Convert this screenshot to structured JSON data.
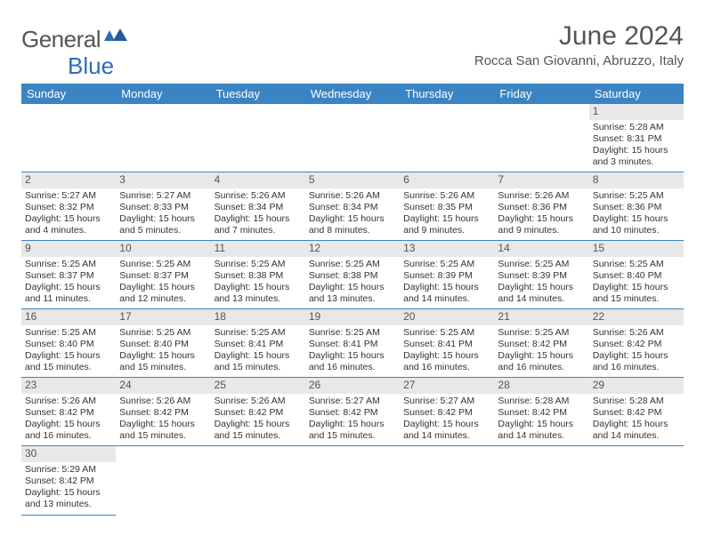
{
  "brand": {
    "general": "General",
    "blue": "Blue"
  },
  "title": "June 2024",
  "location": "Rocca San Giovanni, Abruzzo, Italy",
  "colors": {
    "header_bg": "#3b84c4",
    "header_text": "#ffffff",
    "daynum_bg": "#e8e8e8",
    "cell_border": "#3b84c4",
    "logo_blue": "#2a6db5"
  },
  "weekdays": [
    "Sunday",
    "Monday",
    "Tuesday",
    "Wednesday",
    "Thursday",
    "Friday",
    "Saturday"
  ],
  "labels": {
    "sunrise": "Sunrise: ",
    "sunset": "Sunset: ",
    "daylight": "Daylight: "
  },
  "first_weekday_index": 6,
  "days": [
    {
      "n": 1,
      "sunrise": "5:28 AM",
      "sunset": "8:31 PM",
      "daylight": "15 hours and 3 minutes."
    },
    {
      "n": 2,
      "sunrise": "5:27 AM",
      "sunset": "8:32 PM",
      "daylight": "15 hours and 4 minutes."
    },
    {
      "n": 3,
      "sunrise": "5:27 AM",
      "sunset": "8:33 PM",
      "daylight": "15 hours and 5 minutes."
    },
    {
      "n": 4,
      "sunrise": "5:26 AM",
      "sunset": "8:34 PM",
      "daylight": "15 hours and 7 minutes."
    },
    {
      "n": 5,
      "sunrise": "5:26 AM",
      "sunset": "8:34 PM",
      "daylight": "15 hours and 8 minutes."
    },
    {
      "n": 6,
      "sunrise": "5:26 AM",
      "sunset": "8:35 PM",
      "daylight": "15 hours and 9 minutes."
    },
    {
      "n": 7,
      "sunrise": "5:26 AM",
      "sunset": "8:36 PM",
      "daylight": "15 hours and 9 minutes."
    },
    {
      "n": 8,
      "sunrise": "5:25 AM",
      "sunset": "8:36 PM",
      "daylight": "15 hours and 10 minutes."
    },
    {
      "n": 9,
      "sunrise": "5:25 AM",
      "sunset": "8:37 PM",
      "daylight": "15 hours and 11 minutes."
    },
    {
      "n": 10,
      "sunrise": "5:25 AM",
      "sunset": "8:37 PM",
      "daylight": "15 hours and 12 minutes."
    },
    {
      "n": 11,
      "sunrise": "5:25 AM",
      "sunset": "8:38 PM",
      "daylight": "15 hours and 13 minutes."
    },
    {
      "n": 12,
      "sunrise": "5:25 AM",
      "sunset": "8:38 PM",
      "daylight": "15 hours and 13 minutes."
    },
    {
      "n": 13,
      "sunrise": "5:25 AM",
      "sunset": "8:39 PM",
      "daylight": "15 hours and 14 minutes."
    },
    {
      "n": 14,
      "sunrise": "5:25 AM",
      "sunset": "8:39 PM",
      "daylight": "15 hours and 14 minutes."
    },
    {
      "n": 15,
      "sunrise": "5:25 AM",
      "sunset": "8:40 PM",
      "daylight": "15 hours and 15 minutes."
    },
    {
      "n": 16,
      "sunrise": "5:25 AM",
      "sunset": "8:40 PM",
      "daylight": "15 hours and 15 minutes."
    },
    {
      "n": 17,
      "sunrise": "5:25 AM",
      "sunset": "8:40 PM",
      "daylight": "15 hours and 15 minutes."
    },
    {
      "n": 18,
      "sunrise": "5:25 AM",
      "sunset": "8:41 PM",
      "daylight": "15 hours and 15 minutes."
    },
    {
      "n": 19,
      "sunrise": "5:25 AM",
      "sunset": "8:41 PM",
      "daylight": "15 hours and 16 minutes."
    },
    {
      "n": 20,
      "sunrise": "5:25 AM",
      "sunset": "8:41 PM",
      "daylight": "15 hours and 16 minutes."
    },
    {
      "n": 21,
      "sunrise": "5:25 AM",
      "sunset": "8:42 PM",
      "daylight": "15 hours and 16 minutes."
    },
    {
      "n": 22,
      "sunrise": "5:26 AM",
      "sunset": "8:42 PM",
      "daylight": "15 hours and 16 minutes."
    },
    {
      "n": 23,
      "sunrise": "5:26 AM",
      "sunset": "8:42 PM",
      "daylight": "15 hours and 16 minutes."
    },
    {
      "n": 24,
      "sunrise": "5:26 AM",
      "sunset": "8:42 PM",
      "daylight": "15 hours and 15 minutes."
    },
    {
      "n": 25,
      "sunrise": "5:26 AM",
      "sunset": "8:42 PM",
      "daylight": "15 hours and 15 minutes."
    },
    {
      "n": 26,
      "sunrise": "5:27 AM",
      "sunset": "8:42 PM",
      "daylight": "15 hours and 15 minutes."
    },
    {
      "n": 27,
      "sunrise": "5:27 AM",
      "sunset": "8:42 PM",
      "daylight": "15 hours and 14 minutes."
    },
    {
      "n": 28,
      "sunrise": "5:28 AM",
      "sunset": "8:42 PM",
      "daylight": "15 hours and 14 minutes."
    },
    {
      "n": 29,
      "sunrise": "5:28 AM",
      "sunset": "8:42 PM",
      "daylight": "15 hours and 14 minutes."
    },
    {
      "n": 30,
      "sunrise": "5:29 AM",
      "sunset": "8:42 PM",
      "daylight": "15 hours and 13 minutes."
    }
  ]
}
